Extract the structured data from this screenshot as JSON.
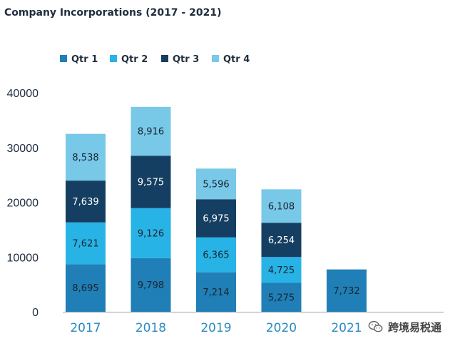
{
  "chart_data": {
    "type": "bar",
    "stacked": true,
    "title": "Company Incorporations (2017 - 2021)",
    "categories": [
      "2017",
      "2018",
      "2019",
      "2020",
      "2021"
    ],
    "series": [
      {
        "name": "Qtr 1",
        "color": "#1f7fb6",
        "values": [
          8695,
          9798,
          7214,
          5275,
          7732
        ],
        "labels": [
          "8,695",
          "9,798",
          "7,214",
          "5,275",
          "7,732"
        ]
      },
      {
        "name": "Qtr 2",
        "color": "#27b3e6",
        "values": [
          7621,
          9126,
          6365,
          4725,
          null
        ],
        "labels": [
          "7,621",
          "9,126",
          "6,365",
          "4,725",
          ""
        ]
      },
      {
        "name": "Qtr 3",
        "color": "#153f62",
        "values": [
          7639,
          9575,
          6975,
          6254,
          null
        ],
        "labels": [
          "7,639",
          "9,575",
          "6,975",
          "6,254",
          ""
        ]
      },
      {
        "name": "Qtr 4",
        "color": "#78c8e8",
        "values": [
          8538,
          8916,
          5596,
          6108,
          null
        ],
        "labels": [
          "8,538",
          "8,916",
          "5,596",
          "6,108",
          ""
        ]
      }
    ],
    "y_ticks": [
      "0",
      "10000",
      "20000",
      "30000",
      "40000"
    ],
    "ylim": [
      0,
      40000
    ],
    "grid": false,
    "legend_position": "top-left",
    "xlabel": "",
    "ylabel": ""
  },
  "watermark": {
    "text": "跨境易税通",
    "icon": "wechat-logo-icon"
  }
}
